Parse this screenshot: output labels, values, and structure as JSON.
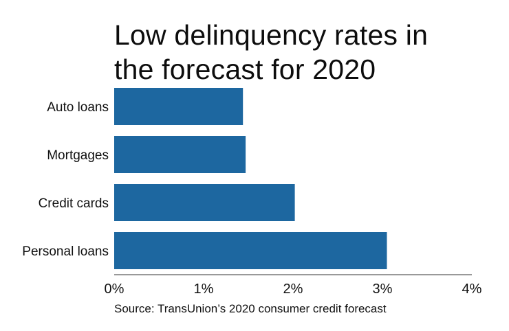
{
  "chart_data": {
    "type": "bar",
    "orientation": "horizontal",
    "title": "Low delinquency rates in the forecast for 2020",
    "title_lines": [
      "Low delinquency rates in",
      "the forecast for 2020"
    ],
    "categories": [
      "Auto loans",
      "Mortgages",
      "Credit cards",
      "Personal loans"
    ],
    "values": [
      1.44,
      1.47,
      2.02,
      3.05
    ],
    "unit": "%",
    "xlabel": "",
    "ylabel": "",
    "xlim": [
      0,
      4
    ],
    "xticks": [
      0,
      1,
      2,
      3,
      4
    ],
    "xtick_labels": [
      "0%",
      "1%",
      "2%",
      "3%",
      "4%"
    ],
    "grid": false,
    "legend": "none",
    "bar_color": "#1d67a0",
    "source": "Source: TransUnion’s 2020 consumer credit forecast"
  }
}
